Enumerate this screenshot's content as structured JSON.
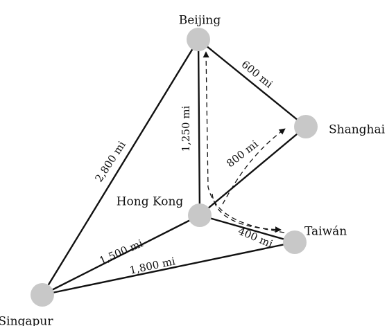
{
  "colors": {
    "node": "#c8c8c8",
    "line": "#111111",
    "background": "#ffffff"
  },
  "nodes": [
    {
      "id": "beijing",
      "label": "Beijing"
    },
    {
      "id": "shanghai",
      "label": "Shanghai"
    },
    {
      "id": "hongkong",
      "label": "Hong Kong"
    },
    {
      "id": "taiwan",
      "label": "Taiwán"
    },
    {
      "id": "singapur",
      "label": "Singapur"
    }
  ],
  "edges": [
    {
      "id": "beijing-shanghai",
      "from": "beijing",
      "to": "shanghai",
      "label": "600 mi"
    },
    {
      "id": "beijing-hongkong",
      "from": "beijing",
      "to": "hongkong",
      "label": "1,250 mi"
    },
    {
      "id": "beijing-singapur",
      "from": "beijing",
      "to": "singapur",
      "label": "2,800 mi"
    },
    {
      "id": "hongkong-shanghai",
      "from": "hongkong",
      "to": "shanghai",
      "label": "800 mi"
    },
    {
      "id": "hongkong-taiwan",
      "from": "hongkong",
      "to": "taiwan",
      "label": "400 mi"
    },
    {
      "id": "hongkong-singapur",
      "from": "hongkong",
      "to": "singapur",
      "label": "1,500 mi"
    },
    {
      "id": "singapur-taiwan",
      "from": "singapur",
      "to": "taiwan",
      "label": "1,800 mi"
    }
  ],
  "routes": [
    {
      "id": "route-1",
      "style": "dashed-arrow"
    },
    {
      "id": "route-2",
      "style": "dashed-arrow"
    },
    {
      "id": "route-3",
      "style": "dashed-arrow"
    }
  ]
}
